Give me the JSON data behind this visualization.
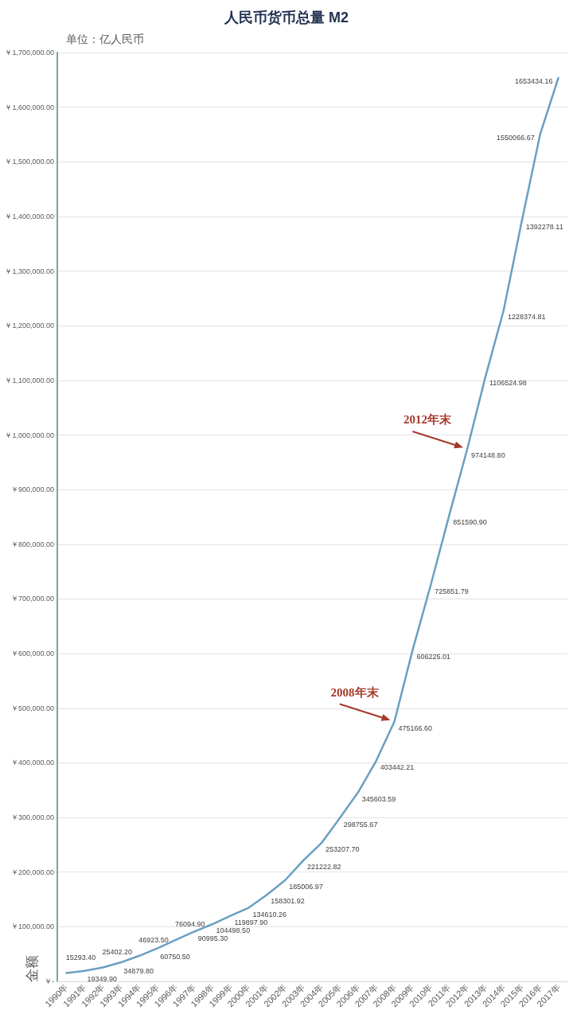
{
  "chart_data": {
    "type": "line",
    "title": "人民币货币总量 M2",
    "ylabel": "金额",
    "annotations": [
      "单位：亿人民币",
      {
        "text": "2008年末",
        "x": "2008年",
        "y": 475166.6
      },
      {
        "text": "2012年末",
        "x": "2012年",
        "y": 974148.8
      }
    ],
    "categories": [
      "1990年",
      "1991年",
      "1992年",
      "1993年",
      "1994年",
      "1995年",
      "1996年",
      "1997年",
      "1998年",
      "1999年",
      "2000年",
      "2001年",
      "2002年",
      "2003年",
      "2004年",
      "2005年",
      "2006年",
      "2007年",
      "2008年",
      "2009年",
      "2010年",
      "2011年",
      "2012年",
      "2013年",
      "2014年",
      "2015年",
      "2016年",
      "2017年"
    ],
    "series": [
      {
        "color": "#6a9fc1",
        "values": [
          15293.4,
          19349.9,
          25402.2,
          34879.8,
          46923.5,
          60750.5,
          76094.9,
          90995.3,
          104498.5,
          119897.9,
          134610.26,
          158301.92,
          185006.97,
          221222.82,
          253207.7,
          298755.67,
          345603.59,
          403442.21,
          475166.6,
          606225.01,
          725851.79,
          851590.9,
          974148.8,
          1106524.98,
          1228374.81,
          1392278.11,
          1550066.67,
          1653434.16
        ],
        "value_labels": [
          "15293.40",
          "19349.90",
          "25402.20",
          "34879.80",
          "46923.50",
          "60750.50",
          "76094.90",
          "90995.30",
          "104498.50",
          "119897.90",
          "134610.26",
          "158301.92",
          "185006.97",
          "221222.82",
          "253207.70",
          "298755.67",
          "345603.59",
          "403442.21",
          "475166.60",
          "606225.01",
          "725851.79",
          "851590.90",
          "974148.80",
          "1106524.98",
          "1228374.81",
          "1392278.11",
          "1550066.67",
          "1653434.16"
        ]
      }
    ],
    "ylim": [
      0,
      1700000
    ],
    "yticks": [
      {
        "value": 0,
        "label": "￥-"
      },
      {
        "value": 100000,
        "label": "￥100,000.00"
      },
      {
        "value": 200000,
        "label": "￥200,000.00"
      },
      {
        "value": 300000,
        "label": "￥300,000.00"
      },
      {
        "value": 400000,
        "label": "￥400,000.00"
      },
      {
        "value": 500000,
        "label": "￥500,000.00"
      },
      {
        "value": 600000,
        "label": "￥600,000.00"
      },
      {
        "value": 700000,
        "label": "￥700,000.00"
      },
      {
        "value": 800000,
        "label": "￥800,000.00"
      },
      {
        "value": 900000,
        "label": "￥900,000.00"
      },
      {
        "value": 1000000,
        "label": "￥1,000,000.00"
      },
      {
        "value": 1100000,
        "label": "￥1,100,000.00"
      },
      {
        "value": 1200000,
        "label": "￥1,200,000.00"
      },
      {
        "value": 1300000,
        "label": "￥1,300,000.00"
      },
      {
        "value": 1400000,
        "label": "￥1,400,000.00"
      },
      {
        "value": 1500000,
        "label": "￥1,500,000.00"
      },
      {
        "value": 1600000,
        "label": "￥1,600,000.00"
      },
      {
        "value": 1700000,
        "label": "￥1,700,000.00"
      }
    ],
    "grid": "y",
    "marker": "none"
  }
}
